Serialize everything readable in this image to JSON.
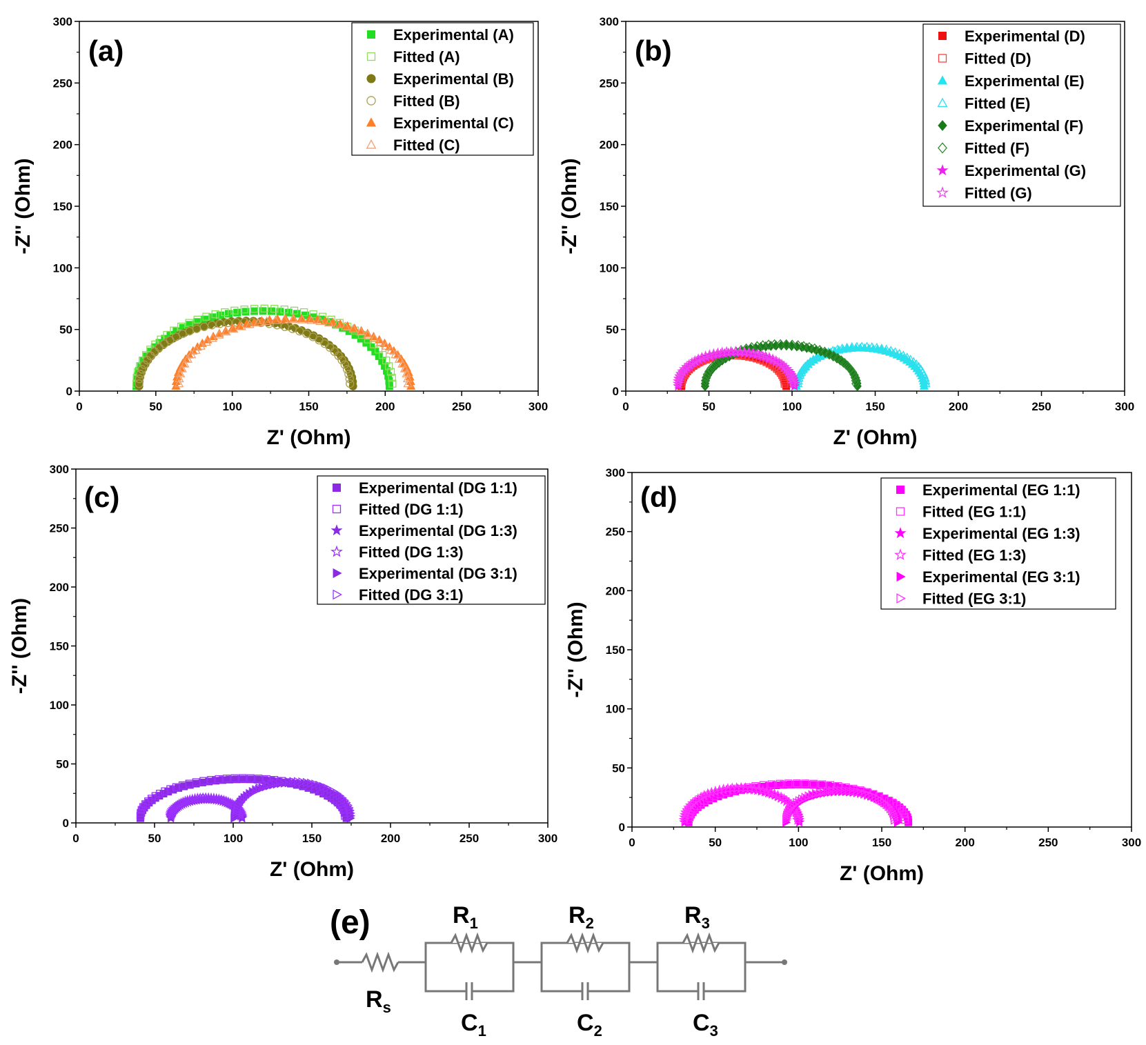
{
  "chart_data": [
    {
      "type": "scatter",
      "panel": "(a)",
      "xlabel": "Z' (Ohm)",
      "ylabel": "-Z'' (Ohm)",
      "xlim": [
        0,
        300
      ],
      "ylim": [
        0,
        300
      ],
      "xticks": [
        "0",
        "50",
        "100",
        "150",
        "200",
        "250",
        "300"
      ],
      "yticks": [
        "0",
        "50",
        "100",
        "150",
        "200",
        "250",
        "300"
      ],
      "legend_position": "top-right",
      "series": [
        {
          "name": "Experimental (A)",
          "marker": "square",
          "filled": true,
          "color": "#22dd22",
          "start": 36,
          "end": 204,
          "peak": 65
        },
        {
          "name": "Fitted (A)",
          "marker": "square",
          "filled": false,
          "color": "#8fdc5a",
          "start": 36,
          "end": 206,
          "peak": 67
        },
        {
          "name": "Experimental (B)",
          "marker": "circle",
          "filled": true,
          "color": "#807a16",
          "start": 38,
          "end": 180,
          "peak": 57
        },
        {
          "name": "Fitted (B)",
          "marker": "circle",
          "filled": false,
          "color": "#a9a050",
          "start": 38,
          "end": 178,
          "peak": 56
        },
        {
          "name": "Experimental (C)",
          "marker": "triangle",
          "filled": true,
          "color": "#ff7f27",
          "start": 62,
          "end": 218,
          "peak": 59
        },
        {
          "name": "Fitted (C)",
          "marker": "triangle",
          "filled": false,
          "color": "#f2a070",
          "start": 64,
          "end": 216,
          "peak": 58
        }
      ]
    },
    {
      "type": "scatter",
      "panel": "(b)",
      "xlabel": "Z' (Ohm)",
      "ylabel": "-Z'' (Ohm)",
      "xlim": [
        0,
        300
      ],
      "ylim": [
        0,
        300
      ],
      "xticks": [
        "0",
        "50",
        "100",
        "150",
        "200",
        "250",
        "300"
      ],
      "yticks": [
        "0",
        "50",
        "100",
        "150",
        "200",
        "250",
        "300"
      ],
      "legend_position": "top-right",
      "series": [
        {
          "name": "Experimental (D)",
          "marker": "square",
          "filled": true,
          "color": "#ee1111",
          "start": 33,
          "end": 97,
          "peak": 30
        },
        {
          "name": "Fitted (D)",
          "marker": "square",
          "filled": false,
          "color": "#ff4040",
          "start": 33,
          "end": 96,
          "peak": 29
        },
        {
          "name": "Experimental (E)",
          "marker": "triangle",
          "filled": true,
          "color": "#22e5ee",
          "start": 102,
          "end": 180,
          "peak": 35
        },
        {
          "name": "Fitted (E)",
          "marker": "triangle",
          "filled": false,
          "color": "#33ddee",
          "start": 103,
          "end": 181,
          "peak": 36
        },
        {
          "name": "Experimental (F)",
          "marker": "diamond",
          "filled": true,
          "color": "#1a7a1a",
          "start": 47,
          "end": 140,
          "peak": 37
        },
        {
          "name": "Fitted (F)",
          "marker": "diamond",
          "filled": false,
          "color": "#2e8b2e",
          "start": 47,
          "end": 139,
          "peak": 38
        },
        {
          "name": "Experimental (G)",
          "marker": "star",
          "filled": true,
          "color": "#ee22ee",
          "start": 31,
          "end": 102,
          "peak": 31
        },
        {
          "name": "Fitted (G)",
          "marker": "star",
          "filled": false,
          "color": "#ee44ee",
          "start": 31,
          "end": 101,
          "peak": 32
        }
      ]
    },
    {
      "type": "scatter",
      "panel": "(c)",
      "xlabel": "Z' (Ohm)",
      "ylabel": "-Z'' (Ohm)",
      "xlim": [
        0,
        300
      ],
      "ylim": [
        0,
        300
      ],
      "xticks": [
        "0",
        "50",
        "100",
        "150",
        "200",
        "250",
        "300"
      ],
      "yticks": [
        "0",
        "50",
        "100",
        "150",
        "200",
        "250",
        "300"
      ],
      "legend_position": "top-right",
      "series": [
        {
          "name": "Experimental (DG 1:1)",
          "marker": "square",
          "filled": true,
          "color": "#8a2be2",
          "start": 40,
          "end": 173,
          "peak": 37
        },
        {
          "name": "Fitted (DG 1:1)",
          "marker": "square",
          "filled": false,
          "color": "#9b30ff",
          "start": 40,
          "end": 172,
          "peak": 38
        },
        {
          "name": "Experimental (DG 1:3)",
          "marker": "star",
          "filled": true,
          "color": "#8a2be2",
          "start": 60,
          "end": 106,
          "peak": 20
        },
        {
          "name": "Fitted (DG 1:3)",
          "marker": "star",
          "filled": false,
          "color": "#9b30ff",
          "start": 60,
          "end": 105,
          "peak": 21
        },
        {
          "name": "Experimental (DG 3:1)",
          "marker": "triangle-right",
          "filled": true,
          "color": "#8a2be2",
          "start": 100,
          "end": 175,
          "peak": 34
        },
        {
          "name": "Fitted (DG 3:1)",
          "marker": "triangle-right",
          "filled": false,
          "color": "#9b30ff",
          "start": 101,
          "end": 175,
          "peak": 35
        }
      ]
    },
    {
      "type": "scatter",
      "panel": "(d)",
      "xlabel": "Z' (Ohm)",
      "ylabel": "-Z'' (Ohm)",
      "xlim": [
        0,
        300
      ],
      "ylim": [
        0,
        300
      ],
      "xticks": [
        "0",
        "50",
        "100",
        "150",
        "200",
        "250",
        "300"
      ],
      "yticks": [
        "0",
        "50",
        "100",
        "150",
        "200",
        "250",
        "300"
      ],
      "legend_position": "top-right",
      "series": [
        {
          "name": "Experimental (EG 1:1)",
          "marker": "square",
          "filled": true,
          "color": "#ff00ff",
          "start": 33,
          "end": 167,
          "peak": 36
        },
        {
          "name": "Fitted (EG 1:1)",
          "marker": "square",
          "filled": false,
          "color": "#ff33ff",
          "start": 33,
          "end": 165,
          "peak": 37
        },
        {
          "name": "Experimental (EG 1:3)",
          "marker": "star",
          "filled": true,
          "color": "#ff00ff",
          "start": 31,
          "end": 101,
          "peak": 32
        },
        {
          "name": "Fitted (EG 1:3)",
          "marker": "star",
          "filled": false,
          "color": "#ff33ff",
          "start": 31,
          "end": 100,
          "peak": 33
        },
        {
          "name": "Experimental (EG 3:1)",
          "marker": "triangle-right",
          "filled": true,
          "color": "#ff00ff",
          "start": 92,
          "end": 160,
          "peak": 30
        },
        {
          "name": "Fitted (EG 3:1)",
          "marker": "triangle-right",
          "filled": false,
          "color": "#ff33ff",
          "start": 92,
          "end": 158,
          "peak": 31
        }
      ]
    }
  ],
  "circuit": {
    "panel": "(e)",
    "labels": {
      "rs": {
        "base": "R",
        "sub": "s"
      },
      "r1": {
        "base": "R",
        "sub": "1"
      },
      "r2": {
        "base": "R",
        "sub": "2"
      },
      "r3": {
        "base": "R",
        "sub": "3"
      },
      "c1": {
        "base": "C",
        "sub": "1"
      },
      "c2": {
        "base": "C",
        "sub": "2"
      },
      "c3": {
        "base": "C",
        "sub": "3"
      }
    }
  }
}
